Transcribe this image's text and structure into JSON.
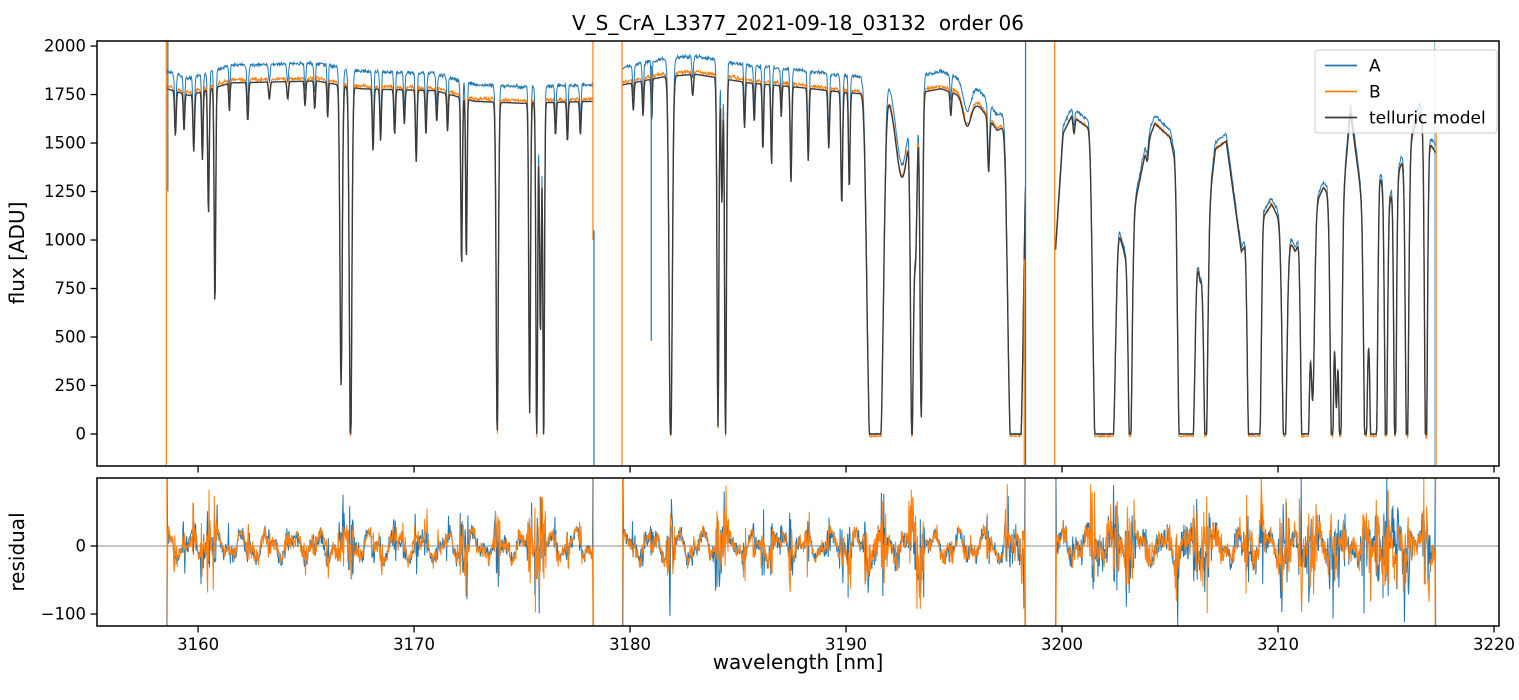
{
  "title": "V_S_CrA_L3377_2021-09-18_03132  order 06",
  "axes": {
    "xlabel": "wavelength [nm]",
    "flux_ylabel": "flux [ADU]",
    "residual_ylabel": "residual",
    "x_ticks": [
      3160,
      3170,
      3180,
      3190,
      3200,
      3210,
      3220
    ],
    "flux_ticks": [
      0,
      250,
      500,
      750,
      1000,
      1250,
      1500,
      1750,
      2000
    ],
    "residual_ticks": [
      -100,
      0
    ],
    "xlim": [
      3155.32,
      3220.23
    ],
    "flux_ylim": [
      -165,
      2026
    ],
    "residual_ylim": [
      -117.6,
      100
    ],
    "grid": false
  },
  "legend": {
    "position": "upper right",
    "items": [
      {
        "label": "A",
        "color": "#1f77b4"
      },
      {
        "label": "B",
        "color": "#ff7f0e"
      },
      {
        "label": "telluric model",
        "color": "#3a3a3a"
      }
    ]
  },
  "chart_data": {
    "type": "line",
    "title": "V_S_CrA_L3377_2021-09-18_03132  order 06",
    "xlabel": "wavelength [nm]",
    "ylabel_top": "flux [ADU]",
    "ylabel_bottom": "residual",
    "description": "Echelle spectrum order 06: nodding positions A and B with fitted telluric model (top), fit residuals A-model and B-model (bottom). Three detector segments separated by gaps; deep telluric absorption lines reach zero flux.",
    "series": [
      {
        "name": "A",
        "color": "#1f77b4",
        "role": "data",
        "noisy": true
      },
      {
        "name": "B",
        "color": "#ff7f0e",
        "role": "data",
        "noisy": true
      },
      {
        "name": "telluric model",
        "color": "#3a3a3a",
        "role": "model",
        "noisy": false
      }
    ],
    "sampling": {
      "step_nm": 0.022,
      "seed": 20210918
    },
    "noise": {
      "main_sigma": 10,
      "residual_sigma": 12
    },
    "segments": [
      {
        "range": [
          3158.55,
          3178.3
        ],
        "scale_a": 1.05,
        "scale_b": 1.008,
        "extra_res_noise": 0,
        "continuum": [
          [
            3158.55,
            1780
          ],
          [
            3159.6,
            1745
          ],
          [
            3161.5,
            1810
          ],
          [
            3165.5,
            1820
          ],
          [
            3167.5,
            1780
          ],
          [
            3171.0,
            1770
          ],
          [
            3172.8,
            1715
          ],
          [
            3175.0,
            1705
          ],
          [
            3178.3,
            1715
          ]
        ]
      },
      {
        "range": [
          3179.65,
          3198.3
        ],
        "scale_a": 1.05,
        "scale_b": 1.008,
        "extra_res_noise": 0,
        "continuum": [
          [
            3179.65,
            1800
          ],
          [
            3181.5,
            1840
          ],
          [
            3183.0,
            1855
          ],
          [
            3185.5,
            1810
          ],
          [
            3188.0,
            1785
          ],
          [
            3190.0,
            1760
          ],
          [
            3192.5,
            1740
          ],
          [
            3194.4,
            1780
          ],
          [
            3195.3,
            1745
          ],
          [
            3196.2,
            1685
          ],
          [
            3197.0,
            1565
          ],
          [
            3198.3,
            1640
          ]
        ]
      },
      {
        "range": [
          3199.7,
          3217.3
        ],
        "scale_a": 1.025,
        "scale_b": 1.0,
        "extra_res_noise": 7,
        "continuum": [
          [
            3199.7,
            950
          ],
          [
            3200.05,
            1550
          ],
          [
            3200.45,
            1640
          ],
          [
            3201.2,
            1580
          ],
          [
            3202.9,
            930
          ],
          [
            3203.95,
            1500
          ],
          [
            3204.3,
            1600
          ],
          [
            3205.0,
            1530
          ],
          [
            3206.4,
            790
          ],
          [
            3207.1,
            1470
          ],
          [
            3207.6,
            1510
          ],
          [
            3208.3,
            940
          ],
          [
            3209.7,
            1185
          ],
          [
            3210.8,
            940
          ],
          [
            3211.6,
            1150
          ],
          [
            3212.1,
            1270
          ],
          [
            3212.95,
            1150
          ],
          [
            3213.35,
            1660
          ],
          [
            3213.8,
            1280
          ],
          [
            3214.75,
            1310
          ],
          [
            3215.2,
            1215
          ],
          [
            3215.65,
            1375
          ],
          [
            3216.1,
            1500
          ],
          [
            3216.55,
            1660
          ],
          [
            3217.05,
            1495
          ],
          [
            3217.3,
            1450
          ]
        ]
      }
    ],
    "telluric_lines": [
      [
        3158.95,
        0.13,
        0.05
      ],
      [
        3159.35,
        0.11,
        0.045
      ],
      [
        3159.8,
        0.17,
        0.05
      ],
      [
        3160.2,
        0.2,
        0.045
      ],
      [
        3160.48,
        0.36,
        0.05
      ],
      [
        3160.78,
        0.63,
        0.05
      ],
      [
        3161.45,
        0.08,
        0.04
      ],
      [
        3162.3,
        0.11,
        0.05
      ],
      [
        3163.3,
        0.05,
        0.05
      ],
      [
        3164.15,
        0.05,
        0.05
      ],
      [
        3164.95,
        0.07,
        0.045
      ],
      [
        3165.4,
        0.08,
        0.045
      ],
      [
        3166.0,
        0.1,
        0.04
      ],
      [
        3166.62,
        0.86,
        0.075
      ],
      [
        3167.06,
        1.06,
        0.08
      ],
      [
        3168.1,
        0.18,
        0.05
      ],
      [
        3168.45,
        0.15,
        0.045
      ],
      [
        3169.1,
        0.13,
        0.05
      ],
      [
        3169.55,
        0.1,
        0.045
      ],
      [
        3170.1,
        0.21,
        0.05
      ],
      [
        3170.55,
        0.13,
        0.045
      ],
      [
        3171.05,
        0.09,
        0.045
      ],
      [
        3171.55,
        0.11,
        0.045
      ],
      [
        3172.2,
        0.5,
        0.05
      ],
      [
        3172.42,
        0.48,
        0.045
      ],
      [
        3173.85,
        1.0,
        0.07
      ],
      [
        3175.35,
        0.94,
        0.055
      ],
      [
        3175.68,
        1.06,
        0.055
      ],
      [
        3175.85,
        0.7,
        0.06
      ],
      [
        3176.0,
        1.04,
        0.05
      ],
      [
        3176.55,
        0.1,
        0.045
      ],
      [
        3177.1,
        0.12,
        0.045
      ],
      [
        3177.7,
        0.1,
        0.045
      ],
      [
        3180.15,
        0.08,
        0.045
      ],
      [
        3180.6,
        0.1,
        0.045
      ],
      [
        3181.0,
        0.12,
        0.035
      ],
      [
        3181.88,
        1.06,
        0.1
      ],
      [
        3182.9,
        0.06,
        0.05
      ],
      [
        3184.07,
        0.98,
        0.06
      ],
      [
        3184.25,
        0.35,
        0.05
      ],
      [
        3184.42,
        1.02,
        0.06
      ],
      [
        3185.3,
        0.13,
        0.045
      ],
      [
        3185.75,
        0.11,
        0.045
      ],
      [
        3186.15,
        0.19,
        0.045
      ],
      [
        3186.55,
        0.23,
        0.045
      ],
      [
        3187.0,
        0.09,
        0.04
      ],
      [
        3187.45,
        0.28,
        0.05
      ],
      [
        3188.25,
        0.21,
        0.05
      ],
      [
        3189.2,
        0.17,
        0.05
      ],
      [
        3189.8,
        0.33,
        0.055
      ],
      [
        3190.15,
        0.28,
        0.05
      ],
      [
        3191.35,
        1.2,
        0.42,
        4
      ],
      [
        3192.6,
        0.24,
        0.4
      ],
      [
        3193.05,
        0.95,
        0.09
      ],
      [
        3193.22,
        0.45,
        0.1
      ],
      [
        3193.48,
        0.95,
        0.08
      ],
      [
        3194.85,
        0.07,
        0.05
      ],
      [
        3195.6,
        0.08,
        0.25
      ],
      [
        3196.6,
        0.17,
        0.06
      ],
      [
        3197.85,
        1.2,
        0.4,
        4
      ],
      [
        3200.55,
        0.05,
        0.06
      ],
      [
        3201.95,
        1.3,
        0.55,
        6
      ],
      [
        3203.15,
        1.15,
        0.12
      ],
      [
        3203.95,
        0.06,
        0.07
      ],
      [
        3205.75,
        1.3,
        0.42,
        6
      ],
      [
        3206.65,
        1.15,
        0.12
      ],
      [
        3208.9,
        1.3,
        0.34,
        6
      ],
      [
        3210.3,
        1.2,
        0.14
      ],
      [
        3211.25,
        1.3,
        0.22,
        4
      ],
      [
        3211.6,
        0.85,
        0.12
      ],
      [
        3212.5,
        1.15,
        0.11
      ],
      [
        3212.7,
        0.8,
        0.08
      ],
      [
        3212.88,
        1.15,
        0.1
      ],
      [
        3214.05,
        1.15,
        0.12
      ],
      [
        3214.25,
        0.5,
        0.1
      ],
      [
        3214.45,
        1.2,
        0.18,
        4
      ],
      [
        3215.0,
        1.15,
        0.09
      ],
      [
        3215.42,
        1.15,
        0.08
      ],
      [
        3215.97,
        1.15,
        0.1
      ],
      [
        3216.85,
        1.15,
        0.09
      ]
    ],
    "edge_spikes": [
      [
        3158.53,
        "B",
        -160,
        2026
      ],
      [
        3158.6,
        "A",
        1250,
        2026
      ],
      [
        3178.28,
        "B",
        1000,
        2026
      ],
      [
        3178.33,
        "A",
        -160,
        1050
      ],
      [
        3179.63,
        "B",
        -160,
        2026
      ],
      [
        3180.98,
        "A",
        480,
        1900
      ],
      [
        3198.25,
        "B",
        -160,
        900
      ],
      [
        3198.31,
        "A",
        -160,
        2026
      ],
      [
        3199.66,
        "B",
        -160,
        2026
      ],
      [
        3217.25,
        "Alight",
        -160,
        2026
      ],
      [
        3217.32,
        "B",
        -160,
        1550
      ]
    ],
    "residual_zero_line": 0
  }
}
